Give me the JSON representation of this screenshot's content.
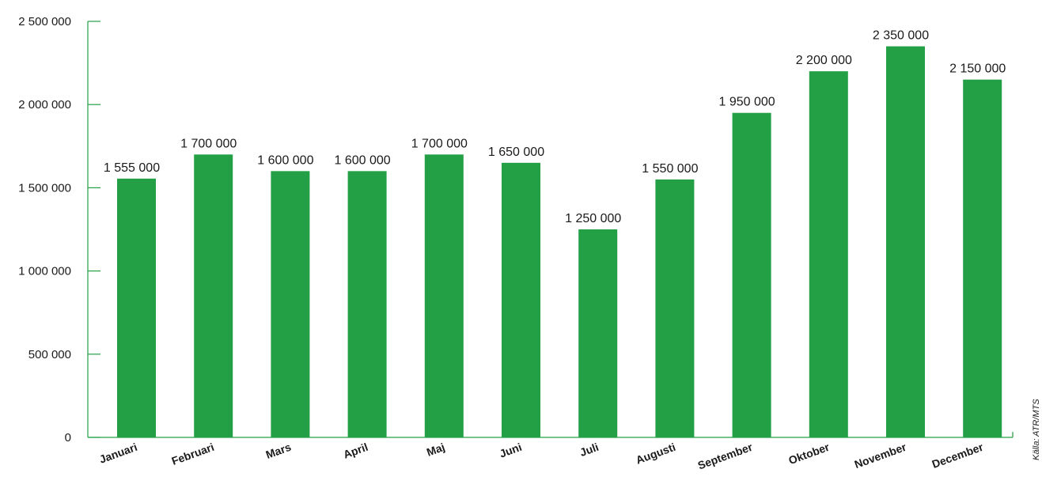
{
  "chart_data": {
    "type": "bar",
    "categories": [
      "Januari",
      "Februari",
      "Mars",
      "April",
      "Maj",
      "Juni",
      "Juli",
      "Augusti",
      "September",
      "Oktober",
      "November",
      "December"
    ],
    "values": [
      1555000,
      1700000,
      1600000,
      1600000,
      1700000,
      1650000,
      1250000,
      1550000,
      1950000,
      2200000,
      2350000,
      2150000
    ],
    "data_labels": [
      "1 555 000",
      "1 700 000",
      "1 600 000",
      "1 600 000",
      "1 700 000",
      "1 650 000",
      "1 250 000",
      "1 550 000",
      "1 950 000",
      "2 200 000",
      "2 350 000",
      "2 150 000"
    ],
    "y_ticks": [
      0,
      500000,
      1000000,
      1500000,
      2000000,
      2500000
    ],
    "y_tick_labels": [
      "0",
      "500 000",
      "1 000 000",
      "1 500 000",
      "2 000 000",
      "2 500 000"
    ],
    "ylim": [
      0,
      2500000
    ],
    "title": "",
    "xlabel": "",
    "ylabel": "",
    "grid": false,
    "legend": "none",
    "source": "Källa: ATR/MTS",
    "colors": {
      "bar": "#23a046",
      "axis": "#23a046",
      "text": "#1a1a1a"
    }
  }
}
